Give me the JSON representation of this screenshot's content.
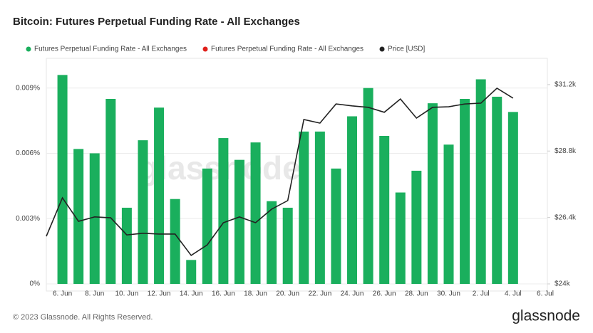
{
  "chart_data": {
    "type": "bar",
    "title": "Bitcoin: Futures Perpetual Funding Rate - All Exchanges",
    "categories": [
      null,
      "6. Jun",
      null,
      "8. Jun",
      null,
      "10. Jun",
      null,
      "12. Jun",
      null,
      "14. Jun",
      null,
      "16. Jun",
      null,
      "18. Jun",
      null,
      "20. Jun",
      null,
      "22. Jun",
      null,
      "24. Jun",
      null,
      "26. Jun",
      null,
      "28. Jun",
      null,
      "30. Jun",
      null,
      "2. Jul",
      null,
      "4. Jul",
      null,
      "6. Jul"
    ],
    "series": [
      {
        "name": "Futures Perpetual Funding Rate - All Exchanges",
        "type": "bar",
        "color": "#1aaf5d",
        "values": [
          null,
          0.0096,
          0.0062,
          0.006,
          0.0085,
          0.0035,
          0.0066,
          0.0081,
          0.0039,
          0.0011,
          0.0053,
          0.0067,
          0.0057,
          0.0065,
          0.0038,
          0.0035,
          0.007,
          0.007,
          0.0053,
          0.0077,
          0.009,
          0.0068,
          0.0042,
          0.0052,
          0.0083,
          0.0064,
          0.0085,
          0.0094,
          0.0086,
          0.0079,
          null,
          null
        ]
      },
      {
        "name": "Futures Perpetual Funding Rate - All Exchanges",
        "type": "bar",
        "color": "#e0201b",
        "values": [
          null,
          null,
          null,
          null,
          null,
          null,
          null,
          null,
          null,
          null,
          null,
          null,
          null,
          null,
          null,
          null,
          null,
          null,
          null,
          null,
          null,
          null,
          null,
          null,
          null,
          null,
          null,
          null,
          null,
          null,
          null,
          null
        ]
      },
      {
        "name": "Price [USD]",
        "type": "line",
        "axis": "y2",
        "color": "#222222",
        "values": [
          25720,
          27110,
          26260,
          26420,
          26390,
          25770,
          25830,
          25800,
          25800,
          25030,
          25410,
          26210,
          26420,
          26210,
          26700,
          27010,
          29940,
          29810,
          30500,
          30430,
          30380,
          30200,
          30680,
          29990,
          30380,
          30400,
          30500,
          30530,
          31070,
          30710,
          null,
          null
        ]
      }
    ],
    "ylim": [
      0,
      0.0102
    ],
    "yticks": [
      {
        "value": 0,
        "label": "0%"
      },
      {
        "value": 0.003,
        "label": "0.003%"
      },
      {
        "value": 0.006,
        "label": "0.006%"
      },
      {
        "value": 0.009,
        "label": "0.009%"
      }
    ],
    "y2lim": [
      24000,
      32020
    ],
    "y2ticks": [
      {
        "value": 24000,
        "label": "$24k"
      },
      {
        "value": 26400,
        "label": "$26.4k"
      },
      {
        "value": 28800,
        "label": "$28.8k"
      },
      {
        "value": 31200,
        "label": "$31.2k"
      }
    ],
    "grid": true,
    "legend": "top-left",
    "watermark": "glassnode"
  },
  "footer": {
    "copyright": "© 2023 Glassnode. All Rights Reserved.",
    "logo": "glassnode"
  }
}
